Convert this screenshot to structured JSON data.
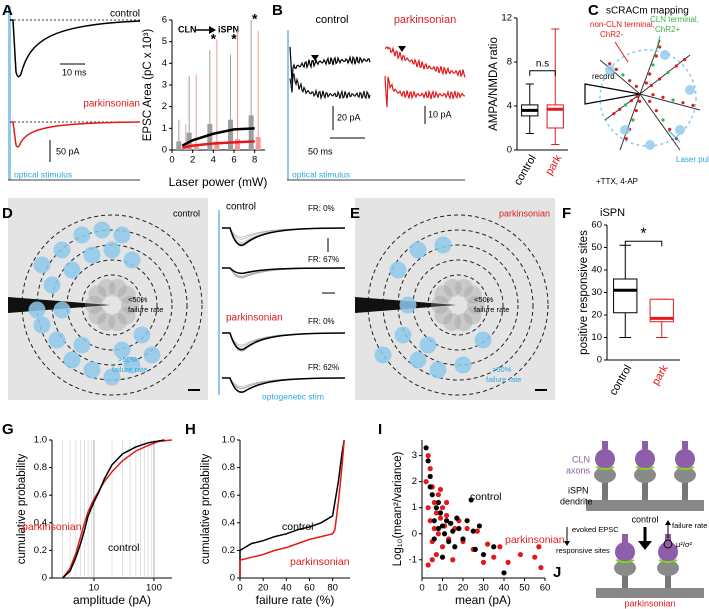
{
  "annotations": [
    "A",
    "control",
    "10 ms",
    "parkinsonian",
    "50 pA",
    "optical stimulus",
    "CLN",
    "iSPN",
    "B",
    "control",
    "parkinsonian",
    "20 pA",
    "50 ms",
    "10 pA",
    "optical stimulus",
    "C",
    "sCRACm mapping",
    "non-CLN terminal,",
    "ChR2-",
    "CLN terminal,",
    "ChR2+",
    "record",
    "Laser pulse",
    "+TTX, 4-AP",
    "D",
    "control",
    "<50%",
    "failure rate",
    ">50%",
    "failure rate",
    "control",
    "FR: 0%",
    "FR: 67%",
    "parkinsonian",
    "FR: 0%",
    "FR: 62%",
    "optogenetic stim",
    "E",
    "parkinsonian",
    "<50%",
    "failure rate",
    ">50%",
    "failure rate",
    "F",
    "G",
    "H",
    "I",
    "J",
    "CLN",
    "axons",
    "iSPN",
    "dendrite",
    "control",
    "evoked EPSC",
    "responsive sites",
    "failure rate",
    "μ²/σ²",
    "parkinsonian"
  ],
  "chart_data": [
    {
      "type": "bar",
      "x_label": "Laser power (mW)",
      "y_label": "EPSC Area (pC x 10³)",
      "x": [
        1,
        2,
        4,
        6,
        8
      ],
      "xlim": [
        0,
        9
      ],
      "xticks": [
        0,
        2,
        4,
        6,
        8
      ],
      "ylim": [
        0,
        6
      ],
      "yticks": [
        0,
        1,
        2,
        3,
        4,
        5,
        6
      ],
      "annotations": [
        "*",
        "*",
        "*"
      ],
      "series": [
        {
          "type": "bar",
          "color": "#9e9e9e",
          "values": [
            0.4,
            0.8,
            1.2,
            1.4,
            1.6
          ],
          "errors": [
            1.0,
            2.6,
            3.4,
            3.0,
            4.4
          ]
        },
        {
          "type": "bar",
          "color": "#f29a9a",
          "values": [
            0.1,
            0.2,
            0.4,
            0.5,
            0.6
          ],
          "errors": [
            1.1,
            3.3,
            4.7,
            5.0,
            4.9
          ]
        },
        {
          "type": "line",
          "color": "#000000",
          "values": [
            0.2,
            0.45,
            0.75,
            0.95,
            1.0
          ]
        },
        {
          "type": "line",
          "color": "#e31a1c",
          "values": [
            0.1,
            0.2,
            0.3,
            0.35,
            0.4
          ]
        }
      ]
    },
    {
      "type": "box",
      "y_label": "AMPA/NMDA ratio",
      "categories": [
        "control",
        "park"
      ],
      "colors": [
        "#000000",
        "#e31a1c"
      ],
      "ylim": [
        0,
        12
      ],
      "yticks": [
        0,
        4,
        8,
        12
      ],
      "annotations": [
        "n.s"
      ],
      "min": [
        1.5,
        0.5
      ],
      "q1": [
        3.1,
        2.0
      ],
      "median": [
        3.6,
        3.7
      ],
      "q3": [
        4.1,
        4.1
      ],
      "max": [
        6.0,
        11.0
      ]
    },
    {
      "type": "box",
      "title": "iSPN",
      "y_label": "positive responsive sites",
      "categories": [
        "control",
        "park"
      ],
      "colors": [
        "#000000",
        "#e31a1c"
      ],
      "ylim": [
        0,
        60
      ],
      "yticks": [
        0,
        10,
        20,
        30,
        40,
        50,
        60
      ],
      "annotations": [
        "*"
      ],
      "min": [
        10,
        10
      ],
      "q1": [
        21,
        17
      ],
      "median": [
        31,
        18.5
      ],
      "q3": [
        36,
        27
      ],
      "max": [
        51,
        27
      ]
    },
    {
      "type": "line",
      "x_label": "amplitude (pA)",
      "y_label": "cumulative probability",
      "log_x": true,
      "grid": true,
      "xlim": [
        2,
        200
      ],
      "xticks": [
        10,
        100
      ],
      "minor_xticks": [
        3,
        4,
        5,
        6,
        7,
        8,
        9,
        20,
        30,
        40,
        50,
        60,
        70,
        80,
        90
      ],
      "ylim": [
        0,
        1
      ],
      "yticks": [
        0,
        0.2,
        0.4,
        0.6,
        0.8,
        {
          "value": 1,
          "label": "1.0"
        }
      ],
      "series": [
        {
          "name": "parkinsonian",
          "color": "#e31a1c",
          "x": [
            3,
            4,
            5,
            6,
            7,
            8,
            10,
            12,
            15,
            20,
            30,
            50,
            80,
            120,
            200
          ],
          "values": [
            0,
            0.07,
            0.18,
            0.3,
            0.4,
            0.48,
            0.57,
            0.63,
            0.7,
            0.77,
            0.85,
            0.92,
            0.96,
            0.99,
            1
          ]
        },
        {
          "name": "control",
          "color": "#000000",
          "x": [
            3,
            4,
            5,
            6,
            7,
            8,
            10,
            12,
            15,
            20,
            30,
            50,
            80,
            150
          ],
          "values": [
            0,
            0.05,
            0.15,
            0.25,
            0.35,
            0.45,
            0.55,
            0.62,
            0.72,
            0.82,
            0.9,
            0.95,
            0.98,
            1
          ]
        }
      ]
    },
    {
      "type": "line",
      "x_label": "failure rate (%)",
      "y_label": "cumulative probability",
      "xlim": [
        0,
        95
      ],
      "xticks": [
        0,
        20,
        40,
        60,
        80
      ],
      "ylim": [
        0,
        1
      ],
      "yticks": [
        0,
        0.2,
        0.4,
        0.6,
        0.8,
        {
          "value": 1,
          "label": "1.0"
        }
      ],
      "series": [
        {
          "name": "control",
          "color": "#000000",
          "x": [
            0,
            0,
            10,
            20,
            30,
            40,
            50,
            60,
            70,
            80,
            82,
            85,
            88,
            90
          ],
          "values": [
            0,
            0.2,
            0.25,
            0.27,
            0.3,
            0.32,
            0.35,
            0.37,
            0.4,
            0.45,
            0.55,
            0.7,
            0.9,
            1
          ]
        },
        {
          "name": "parkinsonian",
          "color": "#e31a1c",
          "x": [
            0,
            0,
            10,
            20,
            30,
            40,
            50,
            60,
            70,
            80,
            82,
            85,
            88,
            90
          ],
          "values": [
            0,
            0.13,
            0.15,
            0.17,
            0.2,
            0.22,
            0.25,
            0.28,
            0.3,
            0.32,
            0.35,
            0.55,
            0.8,
            1
          ]
        }
      ]
    },
    {
      "type": "scatter",
      "x_label": "mean (pA)",
      "y_label": "Log₁₀(mean²/variance)",
      "xlim": [
        0,
        60
      ],
      "xticks": [
        0,
        10,
        20,
        30,
        40,
        50,
        60
      ],
      "ylim": [
        -1.7,
        3.6
      ],
      "yticks": [
        -1,
        0,
        1,
        2,
        3
      ],
      "series": [
        {
          "name": "parkinsonian",
          "color": "#e31a1c",
          "x": [
            2,
            3,
            3,
            4,
            4,
            5,
            5,
            6,
            6,
            7,
            7,
            8,
            8,
            9,
            10,
            10,
            11,
            12,
            13,
            14,
            15,
            16,
            18,
            20,
            22,
            25,
            27,
            30,
            32,
            35,
            38,
            42,
            48,
            55,
            57,
            58,
            3,
            5,
            9,
            12
          ],
          "values": [
            2,
            3,
            1,
            2.5,
            0.5,
            1.8,
            -0.3,
            1.2,
            0.2,
            0.8,
            -0.8,
            1.5,
            0,
            0.6,
            1,
            -0.5,
            0.3,
            0.7,
            -0.2,
            0.4,
            -1,
            0.2,
            0.5,
            -0.3,
            0.2,
            -0.6,
            0.1,
            -1.1,
            -0.4,
            -0.9,
            -0.5,
            -1.1,
            -0.8,
            -0.9,
            -0.5,
            -1.3,
            -1.2,
            -1,
            1.7,
            1.2
          ]
        },
        {
          "name": "control",
          "color": "#000000",
          "x": [
            3,
            4,
            5,
            6,
            7,
            8,
            9,
            10,
            11,
            12,
            13,
            14,
            15,
            16,
            17,
            18,
            20,
            22,
            24,
            25,
            26,
            28,
            30,
            35,
            40,
            2,
            4,
            6,
            8,
            10
          ],
          "values": [
            2.8,
            2.2,
            1.5,
            0.5,
            1,
            0.2,
            0.8,
            0.3,
            0,
            0.5,
            -0.3,
            0.4,
            0.1,
            -0.5,
            0.6,
            0.2,
            -0.2,
            0.5,
            1.3,
            0.1,
            -0.6,
            0.3,
            -0.8,
            -0.5,
            -1.5,
            3.3,
            1.8,
            -0.2,
            1.2,
            -0.9
          ]
        }
      ]
    }
  ]
}
